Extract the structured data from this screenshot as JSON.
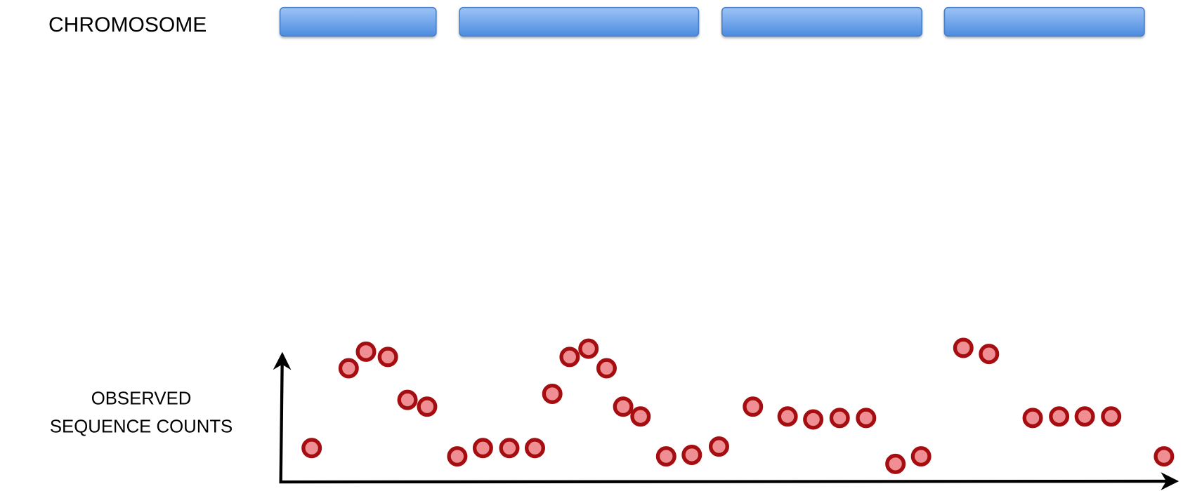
{
  "labels": {
    "chromosome": "CHROMOSOME",
    "counts": [
      "OBSERVED",
      "SEQUENCE COUNTS"
    ]
  }
}
